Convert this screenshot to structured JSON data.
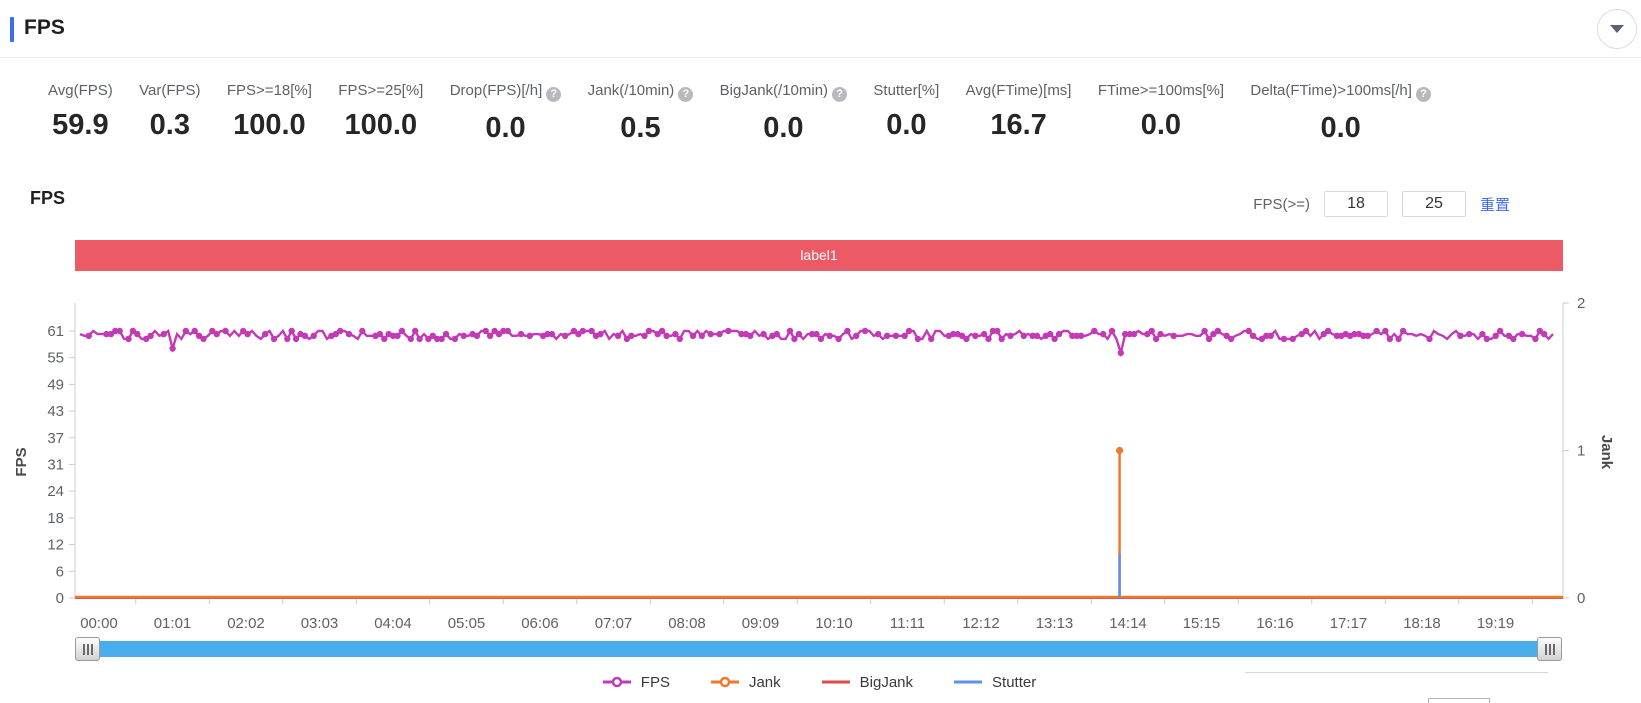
{
  "header": {
    "title": "FPS",
    "accent_color": "#3D6BF2"
  },
  "collapse_button": {
    "icon": "chevron-down"
  },
  "stats": [
    {
      "label": "Avg(FPS)",
      "value": "59.9",
      "help": false
    },
    {
      "label": "Var(FPS)",
      "value": "0.3",
      "help": false
    },
    {
      "label": "FPS>=18[%]",
      "value": "100.0",
      "help": false
    },
    {
      "label": "FPS>=25[%]",
      "value": "100.0",
      "help": false
    },
    {
      "label": "Drop(FPS)[/h]",
      "value": "0.0",
      "help": true
    },
    {
      "label": "Jank(/10min)",
      "value": "0.5",
      "help": true
    },
    {
      "label": "BigJank(/10min)",
      "value": "0.0",
      "help": true
    },
    {
      "label": "Stutter[%]",
      "value": "0.0",
      "help": false
    },
    {
      "label": "Avg(FTime)[ms]",
      "value": "16.7",
      "help": false
    },
    {
      "label": "FTime>=100ms[%]",
      "value": "0.0",
      "help": false
    },
    {
      "label": "Delta(FTime)>100ms[/h]",
      "value": "0.0",
      "help": true
    }
  ],
  "chart_header": {
    "title": "FPS",
    "threshold_label": "FPS(>=)",
    "threshold_inputs": [
      "18",
      "25"
    ],
    "reset_label": "重置",
    "link_color": "#3D6BF2"
  },
  "chart_data": {
    "type": "line",
    "banner": {
      "text": "label1",
      "color": "#EC5A66"
    },
    "x_labels": [
      "00:00",
      "01:01",
      "02:02",
      "03:03",
      "04:04",
      "05:05",
      "06:06",
      "07:07",
      "08:08",
      "09:09",
      "10:10",
      "11:11",
      "12:12",
      "13:13",
      "14:14",
      "15:15",
      "16:16",
      "17:17",
      "18:18",
      "19:19"
    ],
    "y_left": {
      "label": "FPS",
      "tick_labels": [
        "0",
        "6",
        "12",
        "18",
        "24",
        "31",
        "37",
        "43",
        "49",
        "55",
        "61"
      ],
      "range": [
        0,
        67.4
      ]
    },
    "y_right": {
      "label": "Jank",
      "tick_labels": [
        "0",
        "1",
        "2"
      ],
      "range": [
        0,
        2
      ]
    },
    "grid": false,
    "legend_position": "bottom",
    "series": [
      {
        "name": "FPS",
        "axis": "left",
        "color": "#C23AB6",
        "style": "dots",
        "base": 60,
        "jitter_values": [
          61,
          60.3,
          59.9,
          59.2
        ],
        "dips": [
          {
            "time": "01:01",
            "x_frac": 0.065,
            "value": 57
          },
          {
            "time": "14:07",
            "x_frac": 0.702,
            "value": 56
          }
        ]
      },
      {
        "name": "Jank",
        "axis": "right",
        "color": "#F0782A",
        "style": "line-marker",
        "base": 0,
        "spikes": [
          {
            "time": "14:07",
            "x_frac": 0.702,
            "value": 1
          }
        ]
      },
      {
        "name": "BigJank",
        "axis": "right",
        "color": "#DB4C44",
        "style": "line",
        "base": 0,
        "spikes": []
      },
      {
        "name": "Stutter",
        "axis": "right",
        "color": "#6190E8",
        "style": "line",
        "base": 0,
        "spikes": [
          {
            "time": "14:07",
            "x_frac": 0.702,
            "value": 0.3
          }
        ]
      }
    ]
  },
  "datazoom": {
    "color": "#49ADEB"
  },
  "colors": {
    "axis_line": "#c9cdd4",
    "axis_text": "#5e6266",
    "banner_text": "#ffffff"
  }
}
